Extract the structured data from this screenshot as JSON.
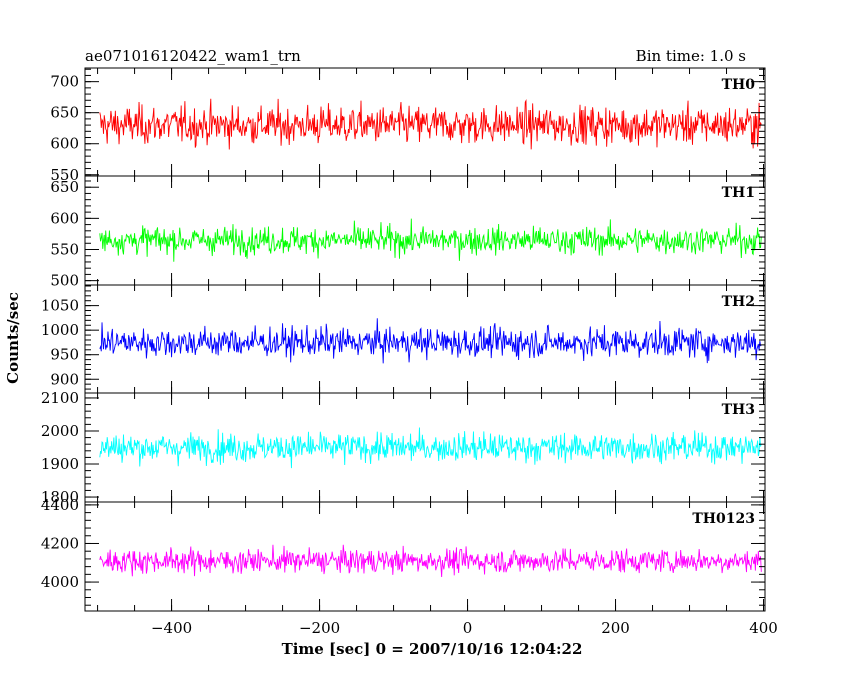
{
  "chart_data": {
    "type": "line",
    "title": "ae071016120422_wam1_trn",
    "subtitle": "Bin time: 1.0 s",
    "xlabel": "Time [sec] 0 = 2007/10/16 12:04:22",
    "ylabel": "Counts/sec",
    "xlim": [
      -517,
      402
    ],
    "x_ticks": [
      -400,
      -200,
      0,
      200,
      400
    ],
    "x_tick_labels": [
      "−400",
      "−200",
      "0",
      "200",
      "400"
    ],
    "bin_time_s": 1.0,
    "x_range_data": [
      -497,
      397
    ],
    "panels": [
      {
        "name": "TH0",
        "color": "#ff0000",
        "ylim": [
          548,
          722
        ],
        "mean": 630,
        "amplitude": 42,
        "y_ticks": [
          550,
          600,
          650,
          700
        ],
        "y_tick_labels": [
          "550",
          "600",
          "650",
          "700"
        ]
      },
      {
        "name": "TH1",
        "color": "#00ff00",
        "ylim": [
          493,
          668
        ],
        "mean": 565,
        "amplitude": 30,
        "y_ticks": [
          500,
          550,
          600,
          650
        ],
        "y_tick_labels": [
          "500",
          "550",
          "600",
          "650"
        ]
      },
      {
        "name": "TH2",
        "color": "#0000ff",
        "ylim": [
          872,
          1092
        ],
        "mean": 975,
        "amplitude": 42,
        "y_ticks": [
          900,
          950,
          1000,
          1050
        ],
        "y_tick_labels": [
          "900",
          "950",
          "1000",
          "1050"
        ]
      },
      {
        "name": "TH3",
        "color": "#00ffff",
        "ylim": [
          1785,
          2115
        ],
        "mean": 1950,
        "amplitude": 60,
        "y_ticks": [
          1800,
          1900,
          2000,
          2100
        ],
        "y_tick_labels": [
          "1800",
          "1900",
          "2000",
          "2100"
        ]
      },
      {
        "name": "TH0123",
        "color": "#ff00ff",
        "ylim": [
          3850,
          4415
        ],
        "mean": 4110,
        "amplitude": 85,
        "y_ticks": [
          4000,
          4200,
          4400
        ],
        "y_tick_labels": [
          "4000",
          "4200",
          "4400"
        ]
      }
    ]
  }
}
